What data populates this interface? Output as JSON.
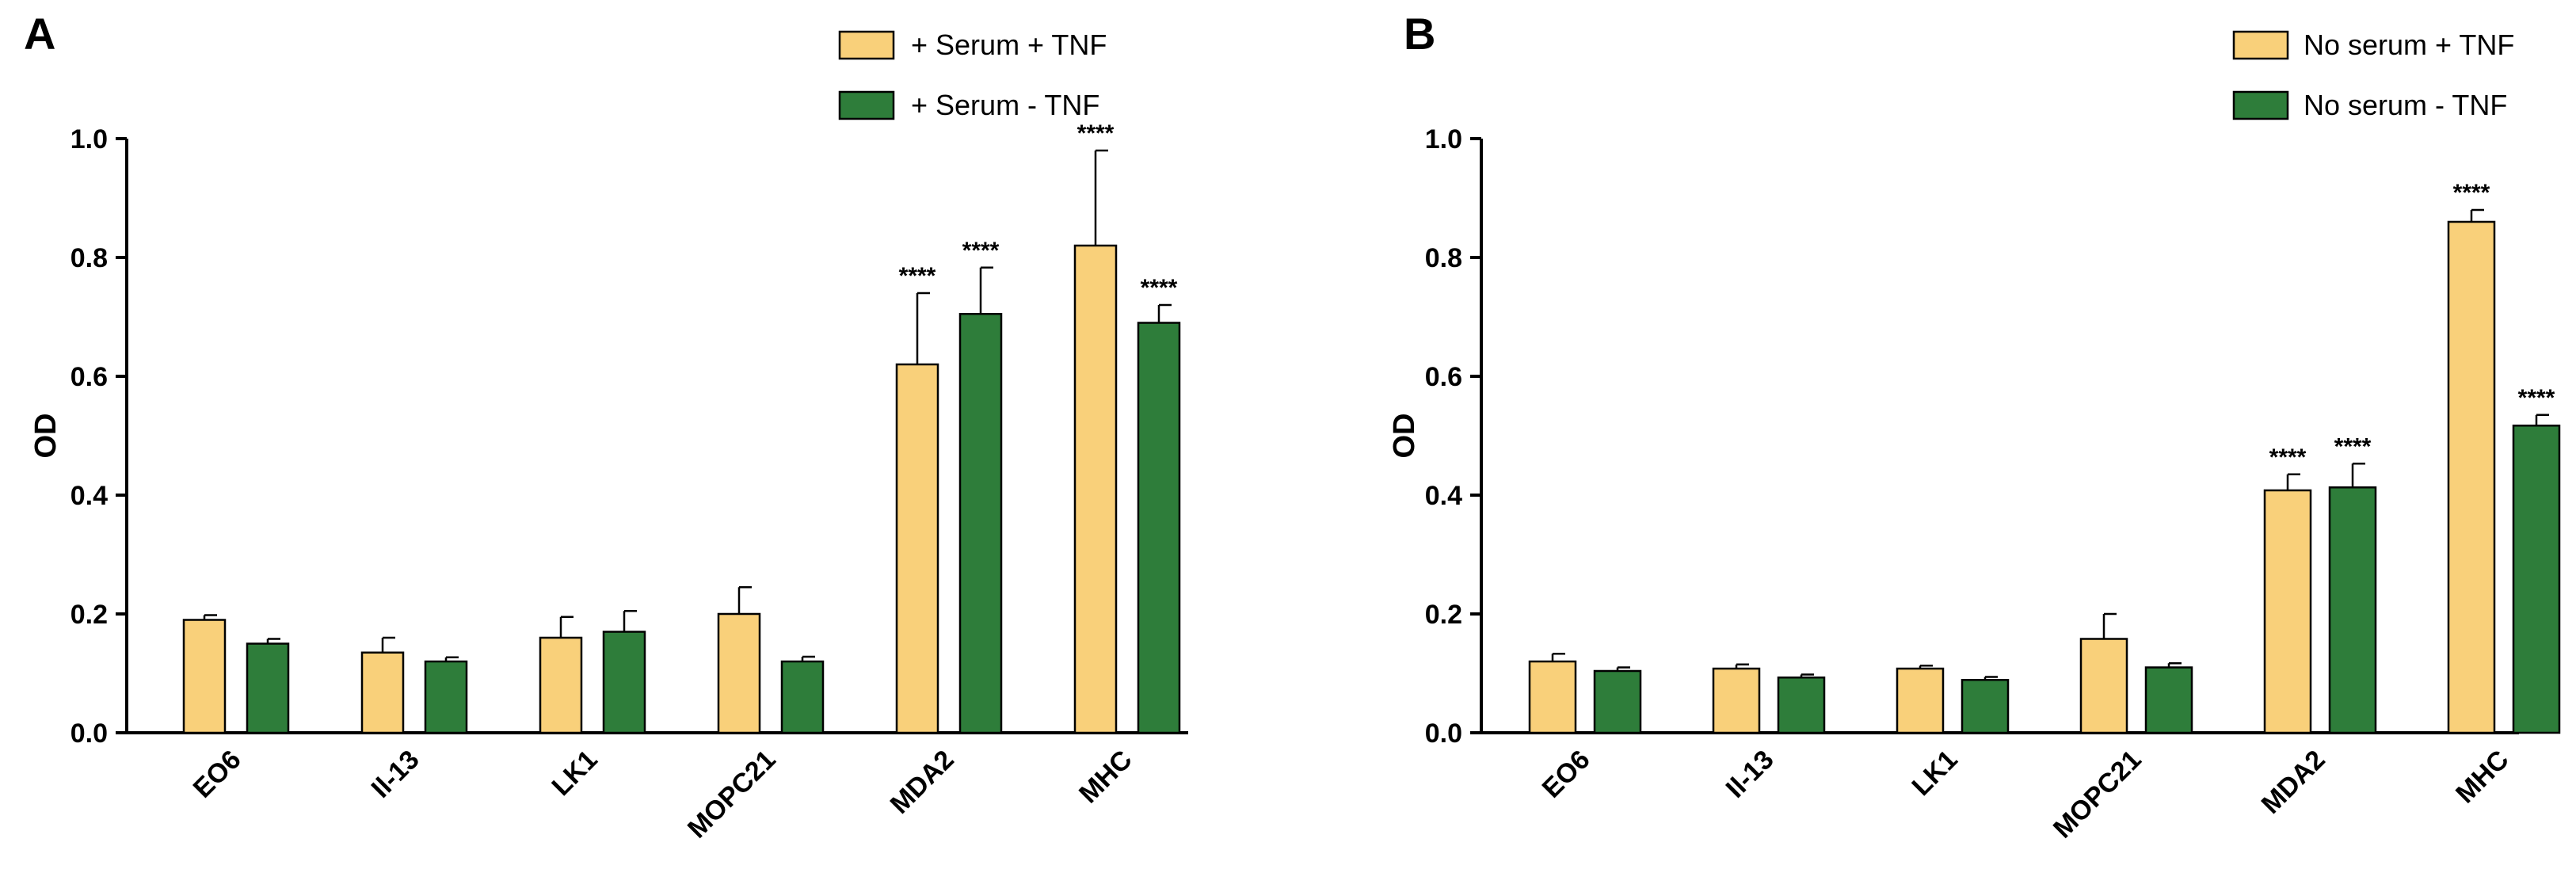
{
  "chart_data": [
    {
      "type": "bar",
      "panel_label": "A",
      "categories": [
        "EO6",
        "Il-13",
        "LK1",
        "MOPC21",
        "MDA2",
        "MHC"
      ],
      "ylabel": "OD",
      "ylim": [
        0,
        1.0
      ],
      "yticks": [
        "0.0",
        "0.2",
        "0.4",
        "0.6",
        "0.8",
        "1.0"
      ],
      "legend_position": "top-right",
      "series": [
        {
          "name": "+ Serum + TNF",
          "color": "#F9D07A",
          "values": [
            0.19,
            0.135,
            0.16,
            0.2,
            0.62,
            0.82
          ],
          "errors": [
            0.008,
            0.025,
            0.035,
            0.045,
            0.12,
            0.16
          ],
          "annotations": [
            "",
            "",
            "",
            "",
            "****",
            "****"
          ]
        },
        {
          "name": "+ Serum - TNF",
          "color": "#2E7D3A",
          "values": [
            0.15,
            0.12,
            0.17,
            0.12,
            0.705,
            0.69
          ],
          "errors": [
            0.008,
            0.007,
            0.035,
            0.008,
            0.078,
            0.03
          ],
          "annotations": [
            "",
            "",
            "",
            "",
            "****",
            "****"
          ]
        }
      ]
    },
    {
      "type": "bar",
      "panel_label": "B",
      "categories": [
        "EO6",
        "Il-13",
        "LK1",
        "MOPC21",
        "MDA2",
        "MHC"
      ],
      "ylabel": "OD",
      "ylim": [
        0,
        1.0
      ],
      "yticks": [
        "0.0",
        "0.2",
        "0.4",
        "0.6",
        "0.8",
        "1.0"
      ],
      "legend_position": "top-right",
      "series": [
        {
          "name": "No serum + TNF",
          "color": "#F9D07A",
          "values": [
            0.12,
            0.108,
            0.108,
            0.158,
            0.408,
            0.86
          ],
          "errors": [
            0.013,
            0.007,
            0.005,
            0.042,
            0.027,
            0.02
          ],
          "annotations": [
            "",
            "",
            "",
            "",
            "****",
            "****"
          ]
        },
        {
          "name": "No serum - TNF",
          "color": "#2E7D3A",
          "values": [
            0.104,
            0.093,
            0.089,
            0.11,
            0.413,
            0.517
          ],
          "errors": [
            0.006,
            0.005,
            0.005,
            0.007,
            0.04,
            0.018
          ],
          "annotations": [
            "",
            "",
            "",
            "",
            "****",
            "****"
          ]
        }
      ]
    }
  ]
}
